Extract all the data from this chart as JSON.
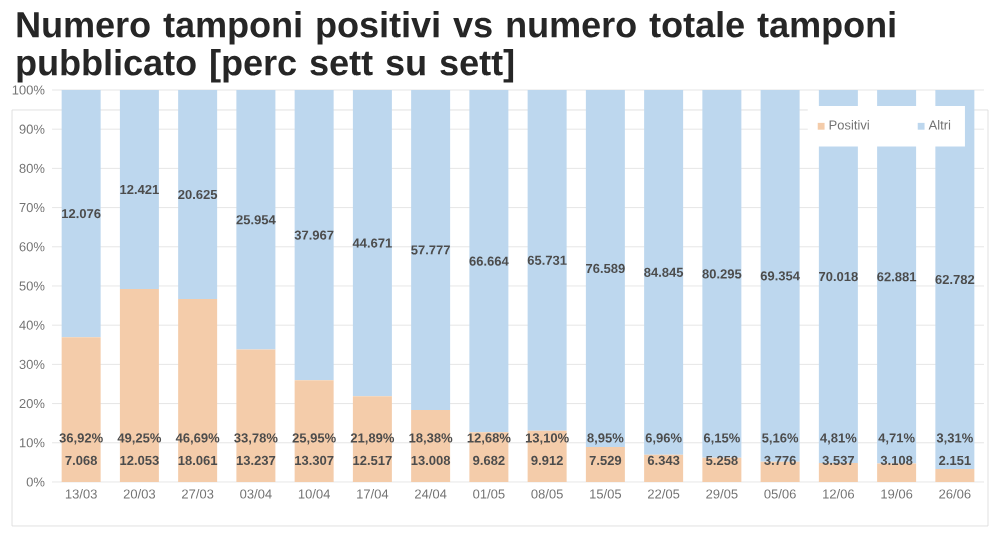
{
  "chart_data": {
    "type": "bar",
    "title": "Numero tamponi positivi vs numero totale tamponi pubblicato [perc sett su sett]",
    "stacked": true,
    "categories": [
      "13/03",
      "20/03",
      "27/03",
      "03/04",
      "10/04",
      "17/04",
      "24/04",
      "01/05",
      "08/05",
      "15/05",
      "22/05",
      "29/05",
      "05/06",
      "12/06",
      "19/06",
      "26/06"
    ],
    "series": [
      {
        "name": "Positivi",
        "color": "#f4ccaa",
        "values": [
          36.92,
          49.25,
          46.69,
          33.78,
          25.95,
          21.89,
          18.38,
          12.68,
          13.1,
          8.95,
          6.96,
          6.15,
          5.16,
          4.81,
          4.71,
          3.31
        ],
        "value_labels": [
          "36,92%",
          "49,25%",
          "46,69%",
          "33,78%",
          "25,95%",
          "21,89%",
          "18,38%",
          "12,68%",
          "13,10%",
          "8,95%",
          "6,96%",
          "6,15%",
          "5,16%",
          "4,81%",
          "4,71%",
          "3,31%"
        ]
      },
      {
        "name": "Altri",
        "color": "#bdd7ee",
        "values": [
          63.08,
          50.75,
          53.31,
          66.22,
          74.05,
          78.11,
          81.62,
          87.32,
          86.9,
          91.05,
          93.04,
          93.85,
          94.84,
          95.19,
          95.29,
          96.69
        ]
      }
    ],
    "annotations": [
      "12.076",
      "12.421",
      "20.625",
      "25.954",
      "37.967",
      "44.671",
      "57.777",
      "66.664",
      "65.731",
      "76.589",
      "84.845",
      "80.295",
      "69.354",
      "70.018",
      "62.881",
      "62.782",
      "7.068",
      "12.053",
      "18.061",
      "13.237",
      "13.307",
      "12.517",
      "13.008",
      "9.682",
      "9.912",
      "7.529",
      "6.343",
      "5.258",
      "3.776",
      "3.537",
      "3.108",
      "2.151"
    ],
    "ylim": [
      0,
      100
    ],
    "yticks": [
      {
        "value": 0,
        "label": "0%"
      },
      {
        "value": 10,
        "label": "10%"
      },
      {
        "value": 20,
        "label": "20%"
      },
      {
        "value": 30,
        "label": "30%"
      },
      {
        "value": 40,
        "label": "40%"
      },
      {
        "value": 50,
        "label": "50%"
      },
      {
        "value": 60,
        "label": "60%"
      },
      {
        "value": 70,
        "label": "70%"
      },
      {
        "value": 80,
        "label": "80%"
      },
      {
        "value": 90,
        "label": "90%"
      },
      {
        "value": 100,
        "label": "100%"
      }
    ],
    "grid": "y",
    "legend": "top right"
  }
}
